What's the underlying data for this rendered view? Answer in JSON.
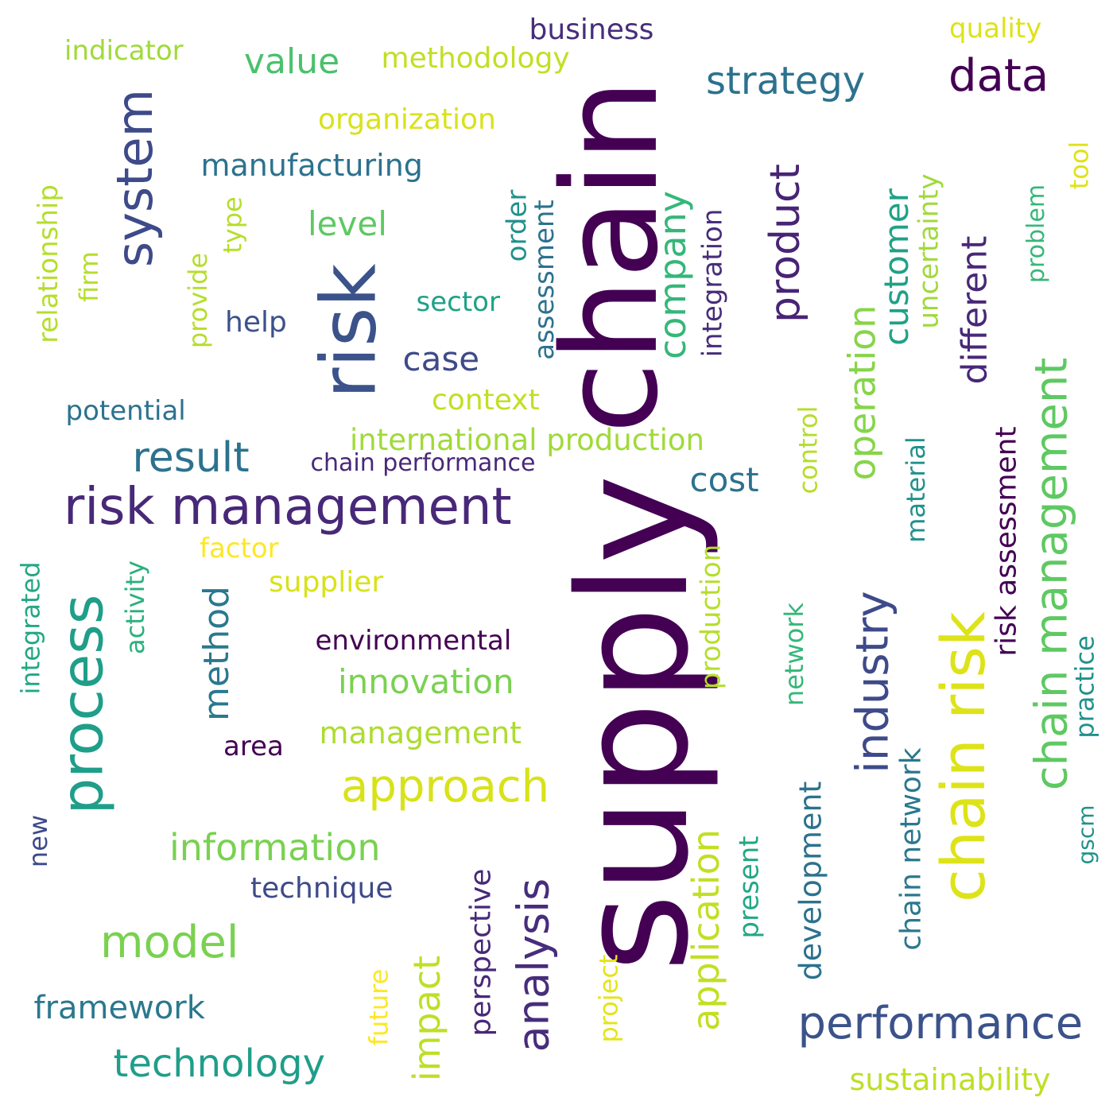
{
  "words": [
    {
      "text": "supply",
      "color": "#440154"
    },
    {
      "text": "chain",
      "color": "#440154"
    },
    {
      "text": "risk",
      "color": "#3b528b"
    },
    {
      "text": "risk management",
      "color": "#482878"
    },
    {
      "text": "process",
      "color": "#1f9e89"
    },
    {
      "text": "chain risk",
      "color": "#dde318"
    },
    {
      "text": "system",
      "color": "#3e4a89"
    },
    {
      "text": "chain management",
      "color": "#5ec962"
    },
    {
      "text": "performance",
      "color": "#3b528b"
    },
    {
      "text": "industry",
      "color": "#3e4a89"
    },
    {
      "text": "analysis",
      "color": "#472d7b"
    },
    {
      "text": "data",
      "color": "#440154"
    },
    {
      "text": "approach",
      "color": "#d8e219"
    },
    {
      "text": "model",
      "color": "#7ad151"
    },
    {
      "text": "result",
      "color": "#2c728e"
    },
    {
      "text": "product",
      "color": "#482475"
    },
    {
      "text": "strategy",
      "color": "#2c728e"
    },
    {
      "text": "company",
      "color": "#35b779"
    },
    {
      "text": "technology",
      "color": "#1f9e89"
    },
    {
      "text": "information",
      "color": "#7ad151"
    },
    {
      "text": "application",
      "color": "#c2df23"
    },
    {
      "text": "impact",
      "color": "#bddf26"
    },
    {
      "text": "operation",
      "color": "#86d549"
    },
    {
      "text": "method",
      "color": "#2a788e"
    },
    {
      "text": "different",
      "color": "#482878"
    },
    {
      "text": "value",
      "color": "#4ac16d"
    },
    {
      "text": "customer",
      "color": "#1fa187"
    },
    {
      "text": "innovation",
      "color": "#7ad151"
    },
    {
      "text": "framework",
      "color": "#2a788e"
    },
    {
      "text": "cost",
      "color": "#2c728e"
    },
    {
      "text": "level",
      "color": "#5ec962"
    },
    {
      "text": "case",
      "color": "#3e4a89"
    },
    {
      "text": "risk assessment",
      "color": "#440154"
    },
    {
      "text": "manufacturing",
      "color": "#2c728e"
    },
    {
      "text": "management",
      "color": "#addc30"
    },
    {
      "text": "international production",
      "color": "#a0da39"
    },
    {
      "text": "development",
      "color": "#2c728e"
    },
    {
      "text": "sustainability",
      "color": "#bddf26"
    },
    {
      "text": "perspective",
      "color": "#482878"
    },
    {
      "text": "chain network",
      "color": "#2a788e"
    },
    {
      "text": "technique",
      "color": "#3e4a89"
    },
    {
      "text": "supplier",
      "color": "#d8e219"
    },
    {
      "text": "business",
      "color": "#472d7b"
    },
    {
      "text": "organization",
      "color": "#d8e219"
    },
    {
      "text": "methodology",
      "color": "#c2df23"
    },
    {
      "text": "context",
      "color": "#c2df23"
    },
    {
      "text": "integration",
      "color": "#472d7b"
    },
    {
      "text": "assessment",
      "color": "#2c728e"
    },
    {
      "text": "environmental",
      "color": "#440154"
    },
    {
      "text": "relationship",
      "color": "#b5de2b"
    },
    {
      "text": "potential",
      "color": "#2c728e"
    },
    {
      "text": "uncertainty",
      "color": "#a0da39"
    },
    {
      "text": "production",
      "color": "#b5de2b"
    },
    {
      "text": "integrated",
      "color": "#22a884"
    },
    {
      "text": "practice",
      "color": "#21918c"
    },
    {
      "text": "indicator",
      "color": "#a0da39"
    },
    {
      "text": "quality",
      "color": "#dde318"
    },
    {
      "text": "present",
      "color": "#22a884"
    },
    {
      "text": "sector",
      "color": "#1fa187"
    },
    {
      "text": "chain performance",
      "color": "#482878"
    },
    {
      "text": "future",
      "color": "#fde725"
    },
    {
      "text": "project",
      "color": "#e5e419"
    },
    {
      "text": "factor",
      "color": "#fde725"
    },
    {
      "text": "provide",
      "color": "#b5de2b"
    },
    {
      "text": "activity",
      "color": "#2ab07f"
    },
    {
      "text": "network",
      "color": "#35b779"
    },
    {
      "text": "control",
      "color": "#b5de2b"
    },
    {
      "text": "material",
      "color": "#21918c"
    },
    {
      "text": "problem",
      "color": "#35b779"
    },
    {
      "text": "order",
      "color": "#21918c"
    },
    {
      "text": "help",
      "color": "#3b528b"
    },
    {
      "text": "area",
      "color": "#440154"
    },
    {
      "text": "type",
      "color": "#b5de2b"
    },
    {
      "text": "firm",
      "color": "#b5de2b"
    },
    {
      "text": "tool",
      "color": "#dde318"
    },
    {
      "text": "new",
      "color": "#3e4a89"
    },
    {
      "text": "gscm",
      "color": "#21918c"
    }
  ]
}
